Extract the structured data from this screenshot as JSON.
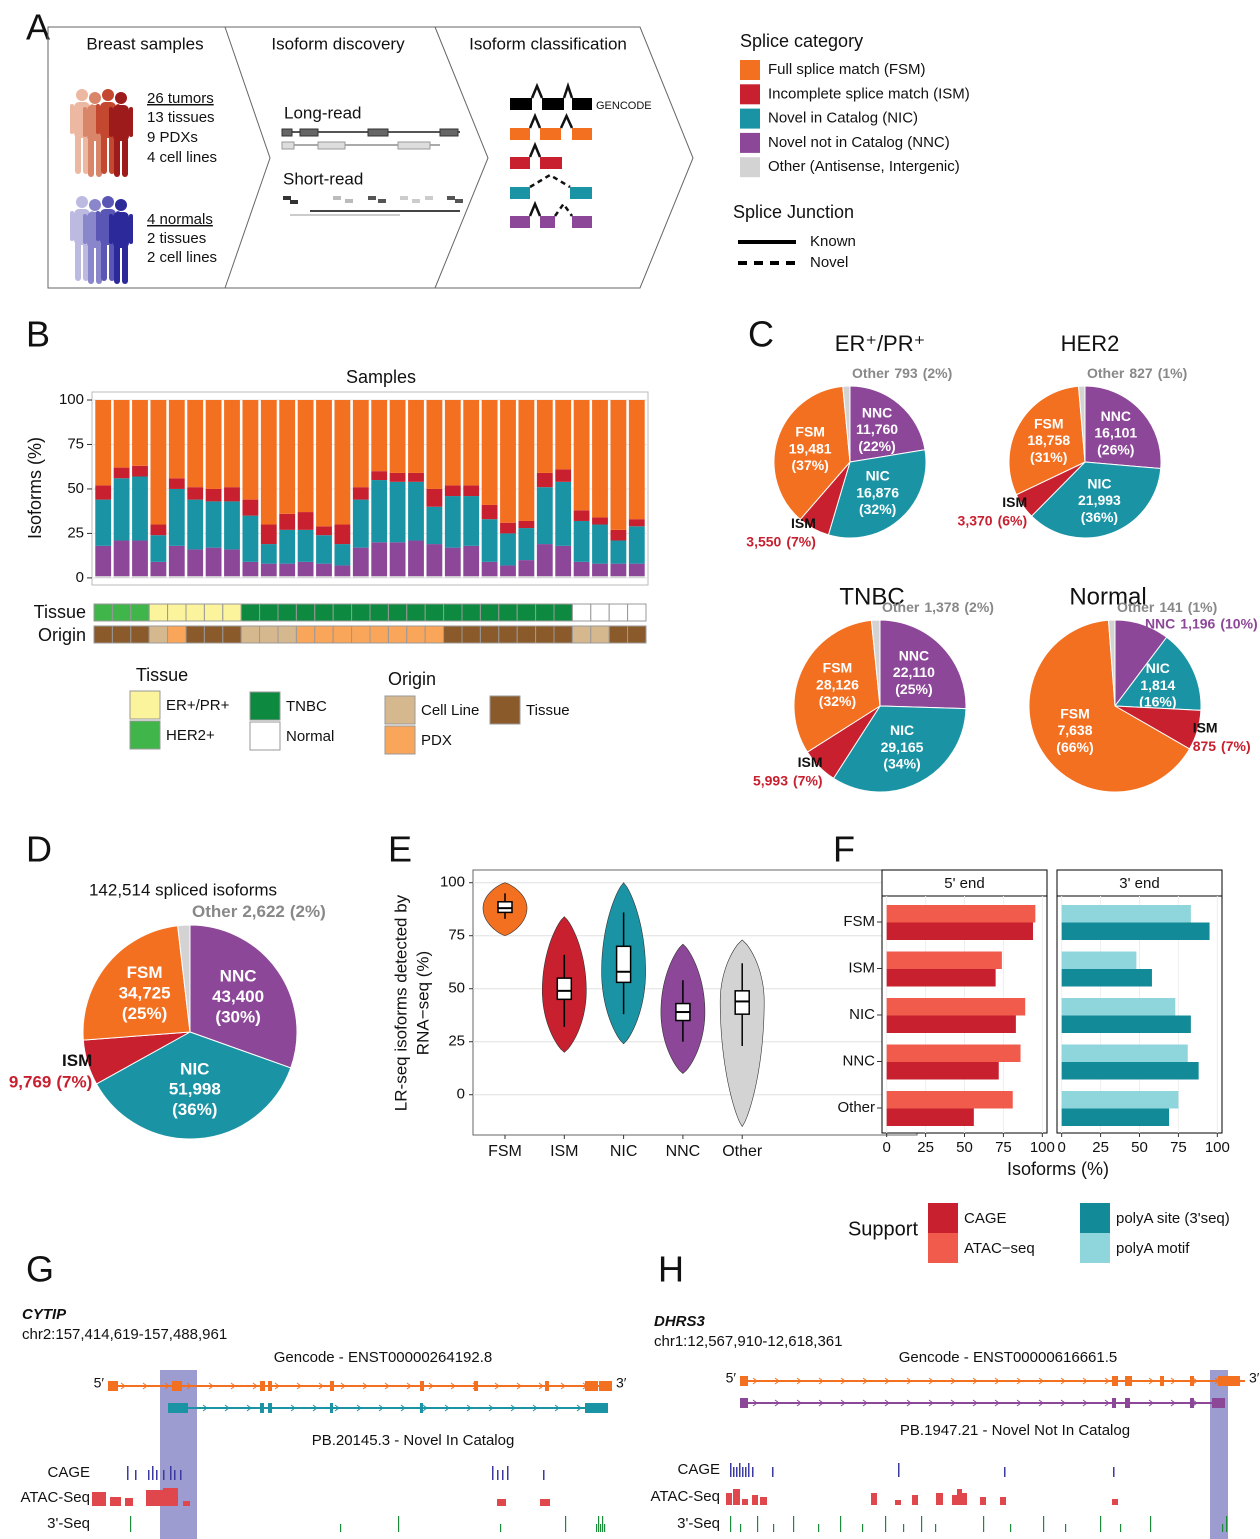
{
  "panel_labels": [
    "A",
    "B",
    "C",
    "D",
    "E",
    "F",
    "G",
    "H"
  ],
  "overview": {
    "steps": [
      "Breast samples",
      "Isoform discovery",
      "Isoform classification"
    ],
    "tumors": {
      "title": "26 tumors",
      "lines": [
        "13 tissues",
        "9 PDXs",
        "4 cell lines"
      ]
    },
    "normals": {
      "title": "4 normals",
      "lines": [
        "2 tissues",
        "2 cell lines"
      ]
    },
    "long_read": "Long-read",
    "short_read": "Short-read",
    "reference": "GENCODE",
    "legend_title": "Splice category",
    "legend": [
      {
        "label": "Full splice match (FSM)",
        "color": "#f37021"
      },
      {
        "label": "Incomplete splice match (ISM)",
        "color": "#c8202f"
      },
      {
        "label": "Novel in Catalog (NIC)",
        "color": "#1a94a4"
      },
      {
        "label": "Novel not in Catalog (NNC)",
        "color": "#8d4799"
      },
      {
        "label": "Other (Antisense, Intergenic)",
        "color": "#d3d3d3"
      }
    ],
    "junction_title": "Splice Junction",
    "junctions": [
      "Known",
      "Novel"
    ]
  },
  "chart_data": [
    {
      "type": "stacked_bar",
      "title": "Samples",
      "ylabel": "Isoforms (%)",
      "ylim": [
        -4,
        104.5
      ],
      "yticks": [
        0,
        25,
        50,
        75,
        100
      ],
      "grid": true,
      "series": [
        {
          "color": "#d3d3d3",
          "values": [
            1,
            1,
            1,
            1,
            1,
            1,
            1,
            1,
            1,
            1,
            1,
            1,
            1,
            1,
            1,
            1,
            1,
            1,
            1,
            1,
            1,
            1,
            1,
            1,
            1,
            1,
            1,
            1,
            1,
            1
          ]
        },
        {
          "color": "#8d4799",
          "values": [
            17,
            20,
            20,
            8,
            17,
            15,
            16,
            15,
            8,
            7,
            7,
            8,
            7,
            6,
            16,
            19,
            19,
            20,
            18,
            16,
            17,
            8,
            6,
            9,
            18,
            17,
            8,
            7,
            7,
            7
          ]
        },
        {
          "color": "#1a94a4",
          "values": [
            26,
            35,
            36,
            15,
            32,
            28,
            26,
            27,
            26,
            11,
            19,
            18,
            16,
            12,
            27,
            35,
            34,
            33,
            21,
            29,
            28,
            24,
            18,
            18,
            32,
            36,
            23,
            22,
            13,
            21
          ]
        },
        {
          "color": "#c8202f",
          "values": [
            8,
            6,
            6,
            6,
            6,
            7,
            7,
            8,
            9,
            11,
            9,
            10,
            5,
            11,
            7,
            5,
            5,
            5,
            10,
            6,
            6,
            8,
            6,
            4,
            8,
            7,
            6,
            4,
            6,
            4
          ]
        },
        {
          "color": "#f37021",
          "values": [
            48,
            38,
            37,
            70,
            44,
            49,
            50,
            49,
            56,
            70,
            64,
            63,
            71,
            70,
            49,
            40,
            41,
            41,
            50,
            48,
            48,
            59,
            69,
            68,
            41,
            39,
            62,
            66,
            73,
            67
          ]
        }
      ],
      "tissue_label": "Tissue",
      "origin_label": "Origin",
      "tissue": [
        "HER2+",
        "HER2+",
        "HER2+",
        "ER+/PR+",
        "ER+/PR+",
        "ER+/PR+",
        "ER+/PR+",
        "ER+/PR+",
        "TNBC",
        "TNBC",
        "TNBC",
        "TNBC",
        "TNBC",
        "TNBC",
        "TNBC",
        "TNBC",
        "TNBC",
        "TNBC",
        "TNBC",
        "TNBC",
        "TNBC",
        "TNBC",
        "TNBC",
        "TNBC",
        "TNBC",
        "TNBC",
        "Normal",
        "Normal",
        "Normal",
        "Normal"
      ],
      "origin": [
        "Tissue",
        "Tissue",
        "Tissue",
        "Cell Line",
        "PDX",
        "Tissue",
        "Tissue",
        "Tissue",
        "Cell Line",
        "Cell Line",
        "Cell Line",
        "PDX",
        "PDX",
        "PDX",
        "PDX",
        "PDX",
        "PDX",
        "PDX",
        "PDX",
        "Tissue",
        "Tissue",
        "Tissue",
        "Tissue",
        "Tissue",
        "Tissue",
        "Tissue",
        "Cell Line",
        "Cell Line",
        "Tissue",
        "Tissue"
      ],
      "tissue_legend": {
        "title": "Tissue",
        "items": [
          {
            "label": "ER+/PR+",
            "color": "#fbf49c"
          },
          {
            "label": "HER2+",
            "color": "#3fb54a"
          },
          {
            "label": "TNBC",
            "color": "#0d8a3f"
          },
          {
            "label": "Normal",
            "color": "#ffffff"
          }
        ]
      },
      "origin_legend": {
        "title": "Origin",
        "items": [
          {
            "label": "Cell Line",
            "color": "#d6b88f"
          },
          {
            "label": "PDX",
            "color": "#f9a65a"
          },
          {
            "label": "Tissue",
            "color": "#8b5a2b"
          }
        ]
      }
    },
    {
      "type": "pie",
      "title": "ER⁺/PR⁺",
      "categories": [
        "FSM",
        "ISM",
        "NIC",
        "NNC",
        "Other"
      ],
      "colors": [
        "#f37021",
        "#c8202f",
        "#1a94a4",
        "#8d4799",
        "#d3d3d3"
      ],
      "values": [
        19481,
        3550,
        16876,
        11760,
        793
      ],
      "value_labels": [
        "19,481",
        "3,550",
        "16,876",
        "11,760",
        "793"
      ],
      "percents": [
        37,
        7,
        32,
        22,
        2
      ],
      "percent_labels": [
        "(37%)",
        "(7%)",
        "(32%)",
        "(22%)",
        "(2%)"
      ]
    },
    {
      "type": "pie",
      "title": "HER2",
      "categories": [
        "FSM",
        "ISM",
        "NIC",
        "NNC",
        "Other"
      ],
      "colors": [
        "#f37021",
        "#c8202f",
        "#1a94a4",
        "#8d4799",
        "#d3d3d3"
      ],
      "values": [
        18758,
        3370,
        21993,
        16101,
        827
      ],
      "value_labels": [
        "18,758",
        "3,370",
        "21,993",
        "16,101",
        "827"
      ],
      "percents": [
        31,
        6,
        36,
        26,
        1
      ],
      "percent_labels": [
        "(31%)",
        "(6%)",
        "(36%)",
        "(26%)",
        "(1%)"
      ]
    },
    {
      "type": "pie",
      "title": "TNBC",
      "categories": [
        "FSM",
        "ISM",
        "NIC",
        "NNC",
        "Other"
      ],
      "colors": [
        "#f37021",
        "#c8202f",
        "#1a94a4",
        "#8d4799",
        "#d3d3d3"
      ],
      "values": [
        28126,
        5993,
        29165,
        22110,
        1378
      ],
      "value_labels": [
        "28,126",
        "5,993",
        "29,165",
        "22,110",
        "1,378"
      ],
      "percents": [
        32,
        7,
        34,
        25,
        2
      ],
      "percent_labels": [
        "(32%)",
        "(7%)",
        "(34%)",
        "(25%)",
        "(2%)"
      ]
    },
    {
      "type": "pie",
      "title": "Normal",
      "categories": [
        "FSM",
        "ISM",
        "NIC",
        "NNC",
        "Other"
      ],
      "colors": [
        "#f37021",
        "#c8202f",
        "#1a94a4",
        "#8d4799",
        "#d3d3d3"
      ],
      "values": [
        7638,
        875,
        1814,
        1196,
        141
      ],
      "value_labels": [
        "7,638",
        "875",
        "1,814",
        "1,196",
        "141"
      ],
      "percents": [
        66,
        7,
        16,
        10,
        1
      ],
      "percent_labels": [
        "(66%)",
        "(7%)",
        "(16%)",
        "(10%)",
        "(1%)"
      ]
    },
    {
      "type": "pie",
      "title": "142,514 spliced isoforms",
      "categories": [
        "FSM",
        "ISM",
        "NIC",
        "NNC",
        "Other"
      ],
      "colors": [
        "#f37021",
        "#c8202f",
        "#1a94a4",
        "#8d4799",
        "#d3d3d3"
      ],
      "values": [
        34725,
        9769,
        51998,
        43400,
        2622
      ],
      "value_labels": [
        "34,725",
        "9,769",
        "51,998",
        "43,400",
        "2,622"
      ],
      "percents": [
        25,
        7,
        36,
        30,
        2
      ],
      "percent_labels": [
        "(25%)",
        "(7%)",
        "(36%)",
        "(30%)",
        "(2%)"
      ]
    },
    {
      "type": "violin",
      "ylabel": [
        "LR-seq isoforms detected by",
        "RNA−seq (%)"
      ],
      "categories": [
        "FSM",
        "ISM",
        "NIC",
        "NNC",
        "Other"
      ],
      "colors": [
        "#f37021",
        "#c8202f",
        "#1a94a4",
        "#8d4799",
        "#d3d3d3"
      ],
      "min": [
        75,
        20,
        24,
        10,
        -15
      ],
      "max": [
        100,
        84,
        100,
        71,
        73
      ],
      "whisker_low": [
        83,
        32,
        38,
        25,
        23
      ],
      "whisker_high": [
        95,
        66,
        86,
        54,
        62
      ],
      "q1": [
        86,
        45,
        53,
        35,
        38
      ],
      "q3": [
        91,
        55,
        70,
        43,
        49
      ],
      "median": [
        88,
        49,
        58,
        39,
        44
      ],
      "ylim": [
        -19,
        106
      ],
      "yticks": [
        0,
        25,
        50,
        75,
        100
      ],
      "grid": true
    },
    {
      "type": "grouped_hbar",
      "categories": [
        "FSM",
        "ISM",
        "NIC",
        "NNC",
        "Other"
      ],
      "xlabel": "Isoforms (%)",
      "xlim": [
        -3,
        103
      ],
      "xticks": [
        0,
        25,
        50,
        75,
        100
      ],
      "grid": true,
      "legend_title": "Support",
      "facets": [
        {
          "title": "5' end",
          "series": [
            {
              "name": "ATAC−seq",
              "color": "#f05b4c",
              "values": [
                95.5,
                74,
                89,
                86,
                81
              ]
            },
            {
              "name": "CAGE",
              "color": "#c8202f",
              "values": [
                94,
                70,
                83,
                72,
                56
              ]
            }
          ]
        },
        {
          "title": "3' end",
          "series": [
            {
              "name": "polyA motif",
              "color": "#8fd5dc",
              "values": [
                83,
                48,
                73,
                81,
                75
              ]
            },
            {
              "name": "polyA site (3'seq)",
              "color": "#138a98",
              "values": [
                95,
                58,
                83,
                88,
                69
              ]
            }
          ]
        }
      ]
    }
  ],
  "tracks": [
    {
      "gene": "CYTIP",
      "coords": "chr2:157,414,619-157,488,961",
      "reference": "Gencode - ENST00000264192.8",
      "five": "5′",
      "three": "3′",
      "isoform": "PB.20145.3 - Novel In Catalog",
      "isoform_color": "#1a94a4",
      "signals": [
        "CAGE",
        "ATAC-Seq",
        "3'-Seq"
      ]
    },
    {
      "gene": "DHRS3",
      "coords": "chr1:12,567,910-12,618,361",
      "reference": "Gencode - ENST00000616661.5",
      "five": "5′",
      "three": "3′",
      "isoform": "PB.1947.21 - Novel Not In Catalog",
      "isoform_color": "#8d4799",
      "signals": [
        "CAGE",
        "ATAC-Seq",
        "3'-Seq"
      ]
    }
  ]
}
